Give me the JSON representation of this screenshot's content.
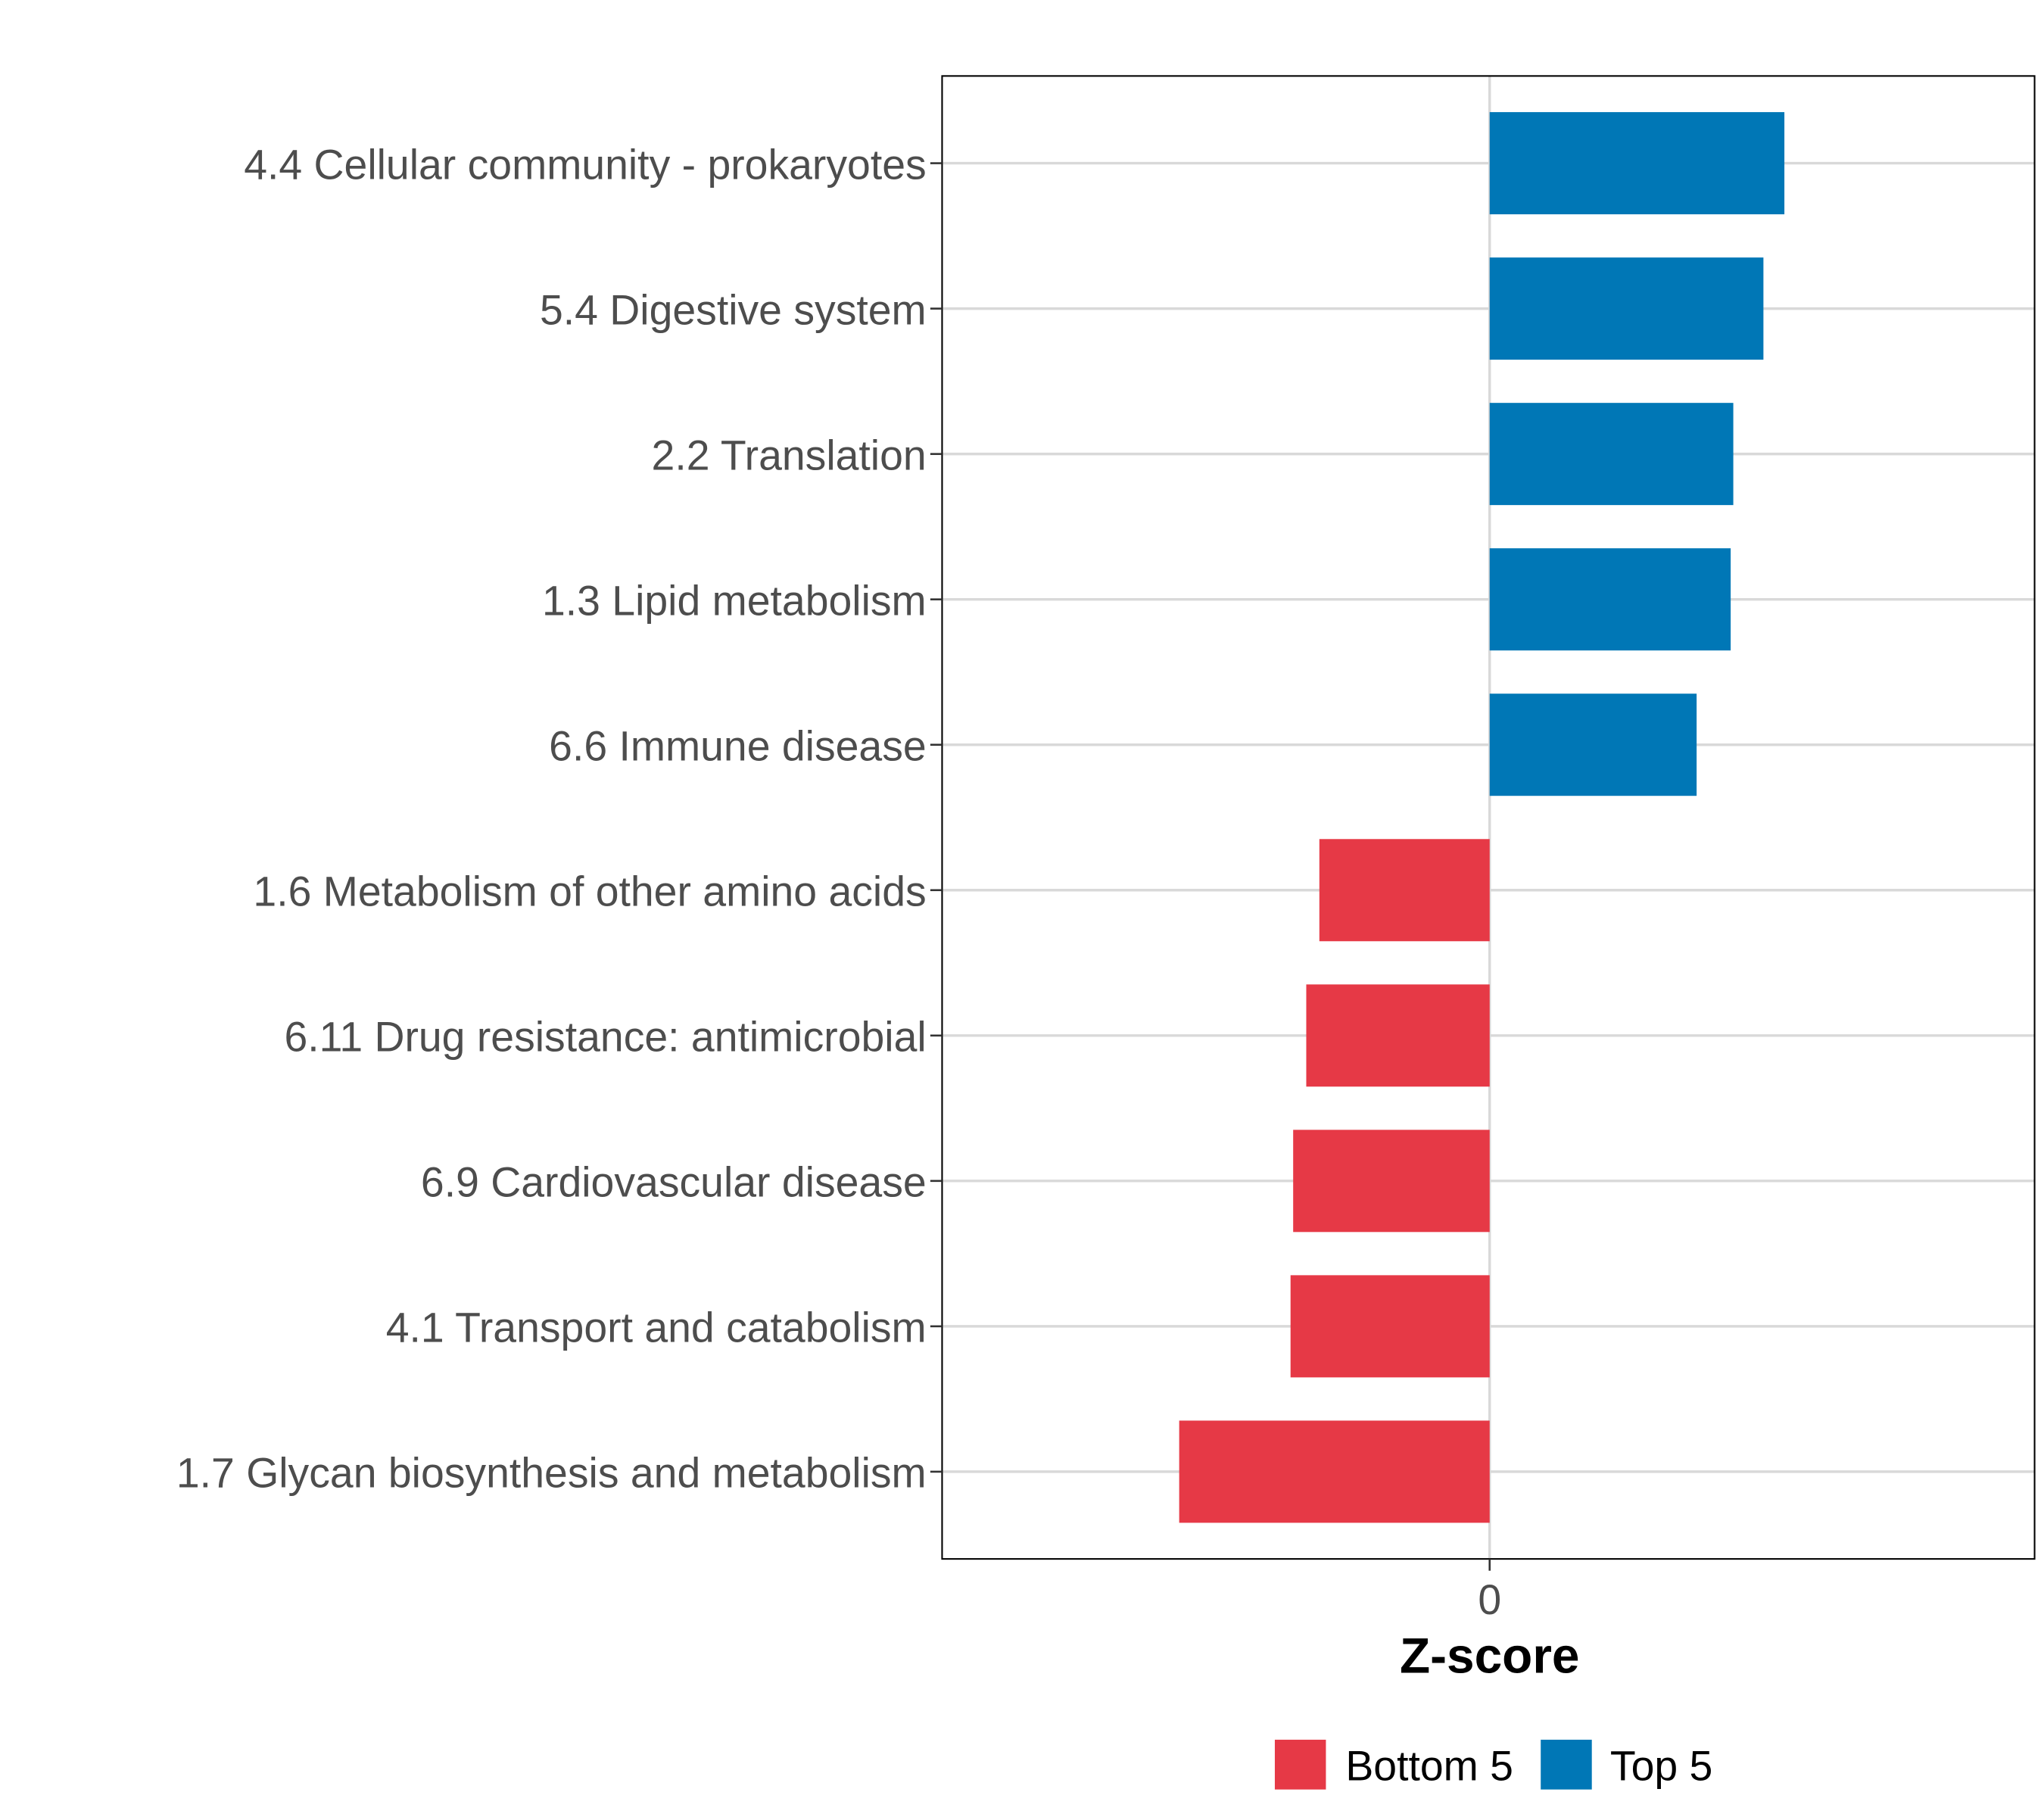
{
  "chart_data": {
    "type": "bar",
    "orientation": "horizontal",
    "categories": [
      "4.4 Cellular community - prokaryotes",
      "5.4 Digestive system",
      "2.2 Translation",
      "1.3 Lipid metabolism",
      "6.6 Immune disease",
      "1.6 Metabolism of other amino acids",
      "6.11 Drug resistance: antimicrobial",
      "6.9 Cardiovascular disease",
      "4.1 Transport and catabolism",
      "1.7 Glycan biosynthesis and metabolism"
    ],
    "values": [
      2.25,
      2.09,
      1.86,
      1.84,
      1.58,
      -1.3,
      -1.4,
      -1.5,
      -1.52,
      -2.37
    ],
    "groups": [
      "Top 5",
      "Top 5",
      "Top 5",
      "Top 5",
      "Top 5",
      "Bottom 5",
      "Bottom 5",
      "Bottom 5",
      "Bottom 5",
      "Bottom 5"
    ],
    "xlabel": "Z-score",
    "ylabel": "",
    "xticks": [
      "0"
    ],
    "xlim": [
      -4.18,
      4.16
    ],
    "grid": true,
    "legend": {
      "placement": "bottom",
      "entries": [
        {
          "label": "Bottom 5",
          "color": "#E63946"
        },
        {
          "label": "Top 5",
          "color": "#0077B6"
        }
      ]
    },
    "colors": {
      "Top 5": "#0077B6",
      "Bottom 5": "#E63946"
    }
  }
}
